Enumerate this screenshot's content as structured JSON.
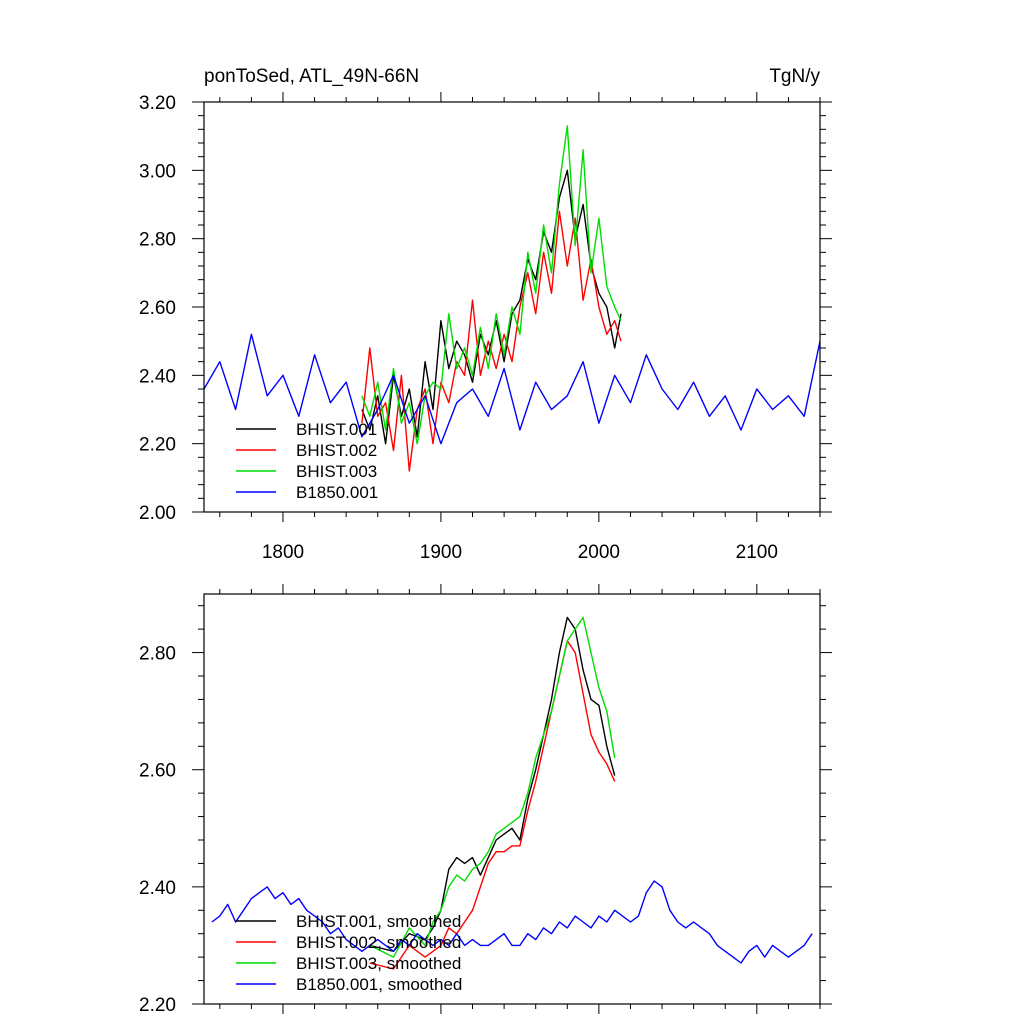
{
  "colors": {
    "BHIST.001": "#000000",
    "BHIST.002": "#ff0000",
    "BHIST.003": "#00dd00",
    "B1850.001": "#0000ff"
  },
  "chart_data": [
    {
      "type": "line",
      "title": "ponToSed, ATL_49N-66N",
      "units": "TgN/y",
      "xlabel": "",
      "ylabel": "",
      "xlim": [
        1750,
        2140
      ],
      "ylim": [
        2.0,
        3.2
      ],
      "x_ticks": [
        1800,
        1900,
        2000,
        2100
      ],
      "x_tick_labels": [
        "1800",
        "1900",
        "2000",
        "2100"
      ],
      "y_ticks": [
        2.0,
        2.2,
        2.4,
        2.6,
        2.8,
        3.0,
        3.2
      ],
      "y_tick_labels": [
        "2.00",
        "2.20",
        "2.40",
        "2.60",
        "2.80",
        "3.00",
        "3.20"
      ],
      "legend_position": "bottom-left",
      "series": [
        {
          "name": "BHIST.001",
          "x": [
            1850,
            1855,
            1860,
            1865,
            1870,
            1875,
            1880,
            1885,
            1890,
            1895,
            1900,
            1905,
            1910,
            1915,
            1920,
            1925,
            1930,
            1935,
            1940,
            1945,
            1950,
            1955,
            1960,
            1965,
            1970,
            1975,
            1980,
            1985,
            1990,
            1995,
            2000,
            2005,
            2010,
            2014
          ],
          "values": [
            2.3,
            2.24,
            2.34,
            2.2,
            2.4,
            2.28,
            2.36,
            2.22,
            2.44,
            2.3,
            2.56,
            2.42,
            2.5,
            2.46,
            2.38,
            2.52,
            2.46,
            2.56,
            2.44,
            2.58,
            2.62,
            2.74,
            2.68,
            2.82,
            2.76,
            2.92,
            3.0,
            2.8,
            2.9,
            2.72,
            2.64,
            2.6,
            2.48,
            2.58
          ]
        },
        {
          "name": "BHIST.002",
          "x": [
            1850,
            1855,
            1860,
            1865,
            1870,
            1875,
            1880,
            1885,
            1890,
            1895,
            1900,
            1905,
            1910,
            1915,
            1920,
            1925,
            1930,
            1935,
            1940,
            1945,
            1950,
            1955,
            1960,
            1965,
            1970,
            1975,
            1980,
            1985,
            1990,
            1995,
            2000,
            2005,
            2010,
            2014
          ],
          "values": [
            2.26,
            2.48,
            2.28,
            2.32,
            2.18,
            2.4,
            2.12,
            2.3,
            2.36,
            2.2,
            2.38,
            2.32,
            2.44,
            2.4,
            2.62,
            2.4,
            2.5,
            2.42,
            2.52,
            2.44,
            2.6,
            2.7,
            2.58,
            2.76,
            2.64,
            2.88,
            2.72,
            2.86,
            2.62,
            2.74,
            2.6,
            2.52,
            2.56,
            2.5
          ]
        },
        {
          "name": "BHIST.003",
          "x": [
            1850,
            1855,
            1860,
            1865,
            1870,
            1875,
            1880,
            1885,
            1890,
            1895,
            1900,
            1905,
            1910,
            1915,
            1920,
            1925,
            1930,
            1935,
            1940,
            1945,
            1950,
            1955,
            1960,
            1965,
            1970,
            1975,
            1980,
            1985,
            1990,
            1995,
            2000,
            2005,
            2010,
            2014
          ],
          "values": [
            2.34,
            2.28,
            2.38,
            2.24,
            2.42,
            2.26,
            2.32,
            2.2,
            2.34,
            2.38,
            2.36,
            2.58,
            2.42,
            2.48,
            2.4,
            2.54,
            2.42,
            2.58,
            2.46,
            2.6,
            2.52,
            2.76,
            2.64,
            2.84,
            2.7,
            2.96,
            3.13,
            2.78,
            3.06,
            2.7,
            2.86,
            2.66,
            2.6,
            2.56
          ]
        },
        {
          "name": "B1850.001",
          "x": [
            1750,
            1760,
            1770,
            1780,
            1790,
            1800,
            1810,
            1820,
            1830,
            1840,
            1850,
            1860,
            1870,
            1880,
            1890,
            1900,
            1910,
            1920,
            1930,
            1940,
            1950,
            1960,
            1970,
            1980,
            1990,
            2000,
            2010,
            2020,
            2030,
            2040,
            2050,
            2060,
            2070,
            2080,
            2090,
            2100,
            2110,
            2120,
            2130,
            2140
          ],
          "values": [
            2.36,
            2.44,
            2.3,
            2.52,
            2.34,
            2.4,
            2.28,
            2.46,
            2.32,
            2.38,
            2.22,
            2.3,
            2.4,
            2.26,
            2.34,
            2.2,
            2.32,
            2.36,
            2.28,
            2.42,
            2.24,
            2.38,
            2.3,
            2.34,
            2.44,
            2.26,
            2.4,
            2.32,
            2.46,
            2.36,
            2.3,
            2.38,
            2.28,
            2.34,
            2.24,
            2.36,
            2.3,
            2.34,
            2.28,
            2.5
          ]
        }
      ]
    },
    {
      "type": "line",
      "title": "",
      "xlabel": "",
      "ylabel": "",
      "xlim": [
        1750,
        2140
      ],
      "ylim": [
        2.2,
        2.9
      ],
      "x_ticks": [
        1800,
        1900,
        2000,
        2100
      ],
      "y_ticks": [
        2.2,
        2.4,
        2.6,
        2.8
      ],
      "y_tick_labels": [
        "2.20",
        "2.40",
        "2.60",
        "2.80"
      ],
      "legend_position": "bottom-left",
      "series": [
        {
          "name": "BHIST.001, smoothed",
          "x": [
            1855,
            1870,
            1880,
            1890,
            1895,
            1900,
            1905,
            1910,
            1915,
            1920,
            1925,
            1930,
            1935,
            1940,
            1945,
            1950,
            1955,
            1960,
            1965,
            1970,
            1975,
            1980,
            1985,
            1990,
            1995,
            2000,
            2005,
            2010
          ],
          "values": [
            2.3,
            2.29,
            2.32,
            2.31,
            2.33,
            2.36,
            2.43,
            2.45,
            2.44,
            2.45,
            2.42,
            2.45,
            2.48,
            2.49,
            2.5,
            2.48,
            2.55,
            2.6,
            2.66,
            2.72,
            2.8,
            2.86,
            2.84,
            2.77,
            2.72,
            2.71,
            2.64,
            2.59
          ]
        },
        {
          "name": "BHIST.002, smoothed",
          "x": [
            1855,
            1870,
            1880,
            1890,
            1895,
            1900,
            1905,
            1910,
            1915,
            1920,
            1925,
            1930,
            1935,
            1940,
            1945,
            1950,
            1955,
            1960,
            1965,
            1970,
            1975,
            1980,
            1985,
            1990,
            1995,
            2000,
            2005,
            2010
          ],
          "values": [
            2.27,
            2.26,
            2.3,
            2.28,
            2.29,
            2.3,
            2.33,
            2.32,
            2.34,
            2.36,
            2.4,
            2.44,
            2.46,
            2.46,
            2.47,
            2.47,
            2.53,
            2.58,
            2.64,
            2.7,
            2.76,
            2.82,
            2.8,
            2.73,
            2.66,
            2.63,
            2.61,
            2.58
          ]
        },
        {
          "name": "BHIST.003, smoothed",
          "x": [
            1855,
            1870,
            1880,
            1890,
            1895,
            1900,
            1905,
            1910,
            1915,
            1920,
            1925,
            1930,
            1935,
            1940,
            1945,
            1950,
            1955,
            1960,
            1965,
            1970,
            1975,
            1980,
            1985,
            1990,
            1995,
            2000,
            2005,
            2010
          ],
          "values": [
            2.3,
            2.28,
            2.33,
            2.3,
            2.34,
            2.36,
            2.4,
            2.42,
            2.41,
            2.43,
            2.44,
            2.46,
            2.49,
            2.5,
            2.51,
            2.52,
            2.56,
            2.62,
            2.66,
            2.7,
            2.76,
            2.82,
            2.84,
            2.86,
            2.8,
            2.74,
            2.7,
            2.62
          ]
        },
        {
          "name": "B1850.001, smoothed",
          "x": [
            1755,
            1760,
            1765,
            1770,
            1775,
            1780,
            1785,
            1790,
            1795,
            1800,
            1805,
            1810,
            1815,
            1820,
            1825,
            1830,
            1835,
            1840,
            1845,
            1850,
            1855,
            1860,
            1865,
            1870,
            1875,
            1880,
            1885,
            1890,
            1895,
            1900,
            1905,
            1910,
            1915,
            1920,
            1925,
            1930,
            1935,
            1940,
            1945,
            1950,
            1955,
            1960,
            1965,
            1970,
            1975,
            1980,
            1985,
            1990,
            1995,
            2000,
            2005,
            2010,
            2015,
            2020,
            2025,
            2030,
            2035,
            2040,
            2045,
            2050,
            2055,
            2060,
            2065,
            2070,
            2075,
            2080,
            2085,
            2090,
            2095,
            2100,
            2105,
            2110,
            2115,
            2120,
            2125,
            2130,
            2135
          ],
          "values": [
            2.34,
            2.35,
            2.37,
            2.34,
            2.36,
            2.38,
            2.39,
            2.4,
            2.38,
            2.39,
            2.37,
            2.38,
            2.36,
            2.35,
            2.34,
            2.32,
            2.33,
            2.31,
            2.3,
            2.29,
            2.3,
            2.31,
            2.3,
            2.29,
            2.31,
            2.3,
            2.32,
            2.31,
            2.3,
            2.31,
            2.3,
            2.32,
            2.3,
            2.31,
            2.3,
            2.3,
            2.31,
            2.32,
            2.3,
            2.3,
            2.32,
            2.31,
            2.33,
            2.32,
            2.34,
            2.33,
            2.35,
            2.34,
            2.33,
            2.35,
            2.34,
            2.36,
            2.35,
            2.34,
            2.35,
            2.39,
            2.41,
            2.4,
            2.36,
            2.34,
            2.33,
            2.34,
            2.33,
            2.32,
            2.3,
            2.29,
            2.28,
            2.27,
            2.29,
            2.3,
            2.28,
            2.3,
            2.29,
            2.28,
            2.29,
            2.3,
            2.32
          ]
        }
      ]
    }
  ]
}
